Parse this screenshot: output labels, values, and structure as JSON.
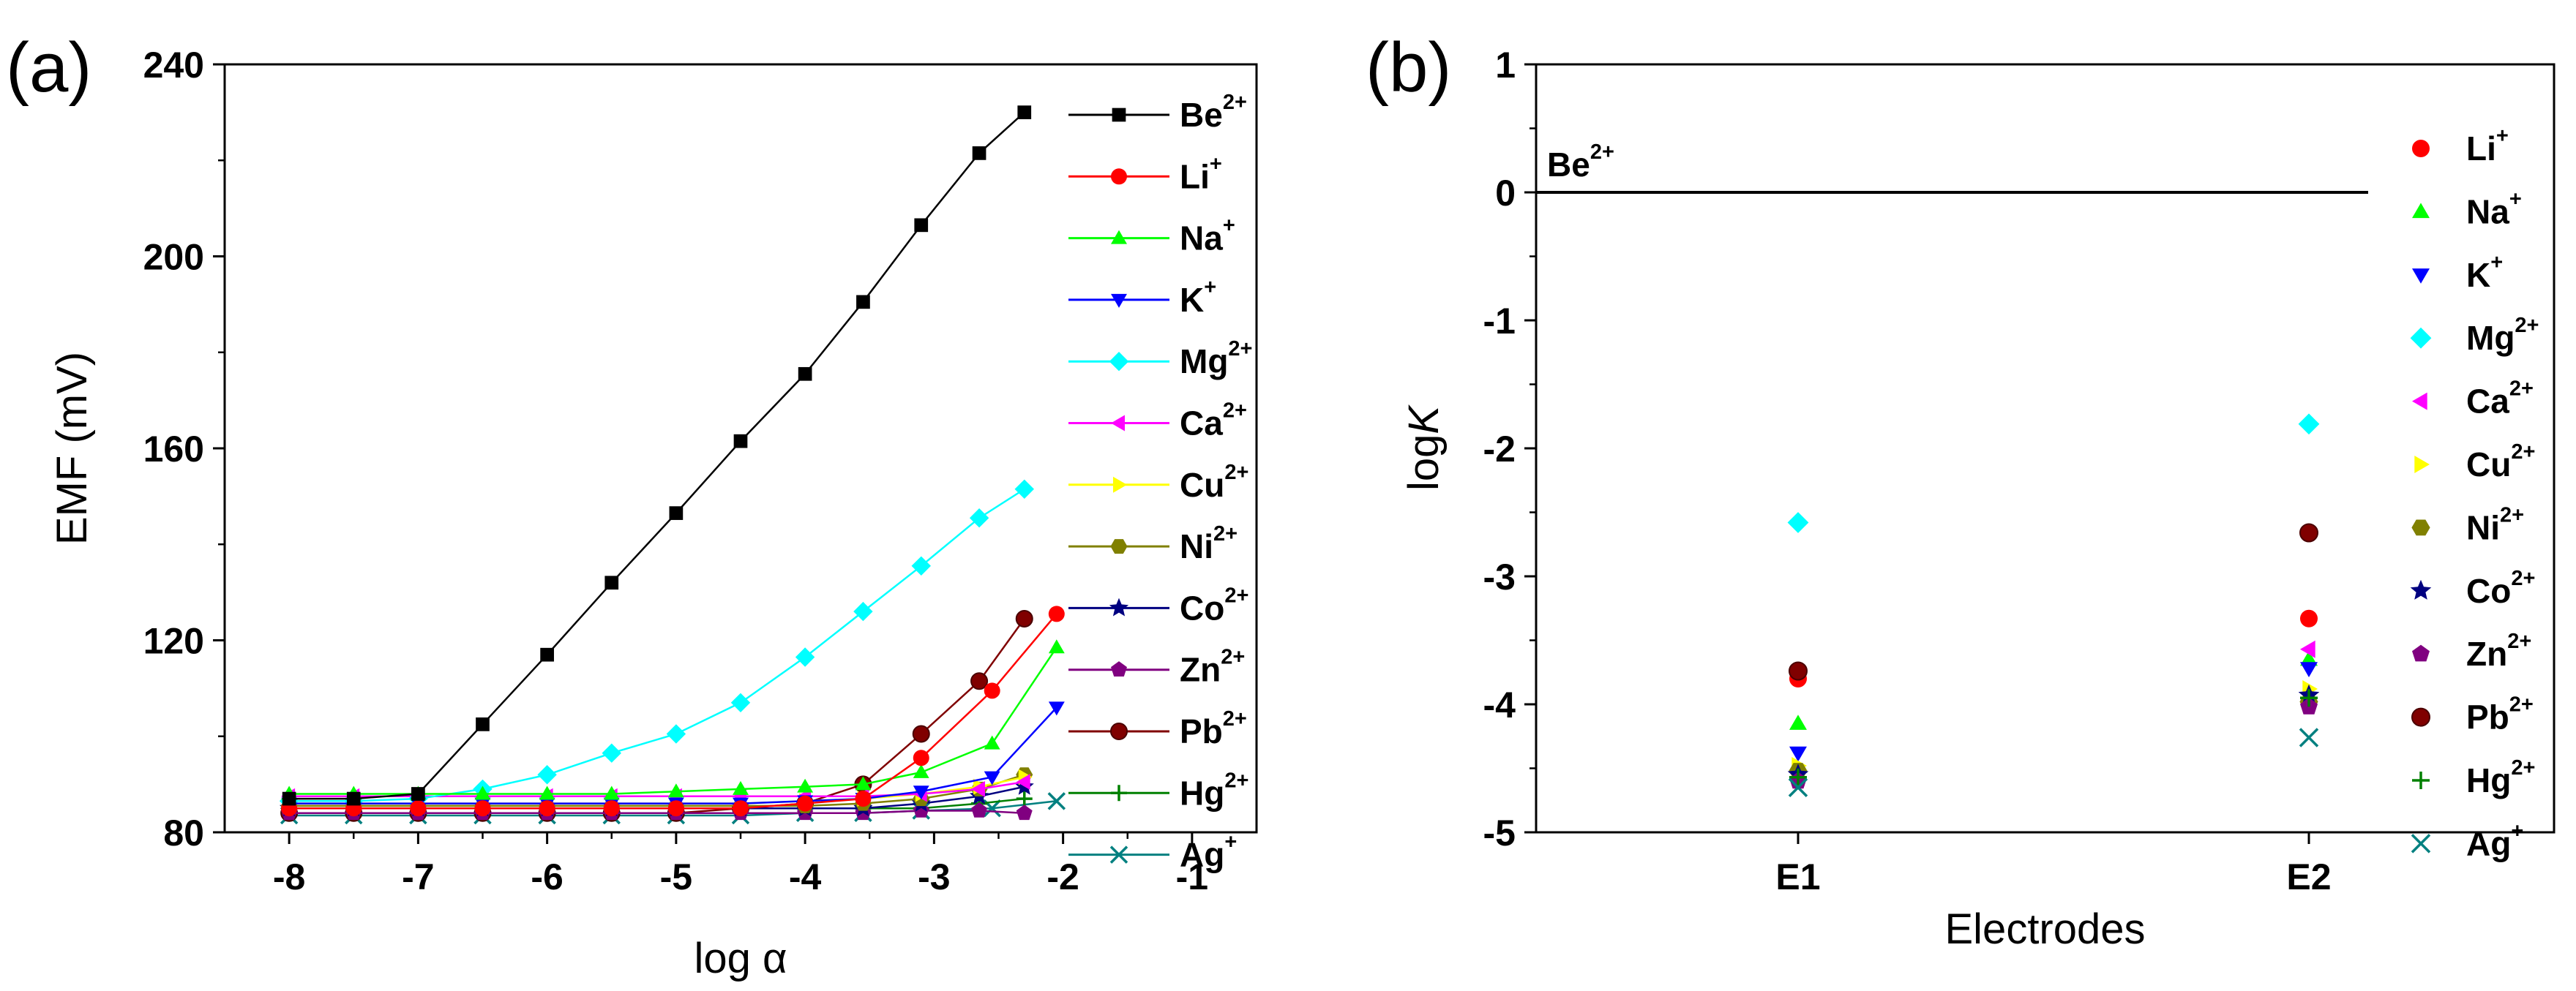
{
  "chart_data": [
    {
      "panel": "(a)",
      "type": "line",
      "xlabel": "log α",
      "ylabel": "EMF (mV)",
      "xlim": [
        -8.5,
        -0.5
      ],
      "ylim": [
        80,
        240
      ],
      "xticks": [
        -8,
        -7,
        -6,
        -5,
        -4,
        -3,
        -2,
        -1
      ],
      "xtick_labels": [
        "-8",
        "-7",
        "-6",
        "-5",
        "-4",
        "-3",
        "-2",
        "-1"
      ],
      "yticks": [
        80,
        120,
        160,
        200,
        240
      ],
      "ytick_labels": [
        "80",
        "120",
        "160",
        "200",
        "240"
      ],
      "grid": false,
      "legend_position": "right",
      "x": [
        -8,
        -7.5,
        -7,
        -6.5,
        -6,
        -5.5,
        -5,
        -4.5,
        -4,
        -3.55,
        -3.1,
        -2.65,
        -2.3
      ],
      "series": [
        {
          "name": "Be",
          "charge": "2+",
          "color": "#000000",
          "marker": "square",
          "x": [
            -8,
            -7.5,
            -7,
            -6.5,
            -6,
            -5.5,
            -5,
            -4.5,
            -4,
            -3.55,
            -3.1,
            -2.65,
            -2.3
          ],
          "values": [
            87,
            87,
            88,
            102.5,
            117,
            132,
            146.5,
            161.5,
            175.5,
            190.5,
            206.5,
            221.5,
            230
          ]
        },
        {
          "name": "Li",
          "charge": "+",
          "color": "#ff0000",
          "marker": "circle",
          "x": [
            -8,
            -7.5,
            -7,
            -6.5,
            -6,
            -5.5,
            -5,
            -4.5,
            -4,
            -3.55,
            -3.1,
            -2.55,
            -2.05
          ],
          "values": [
            85,
            85,
            85,
            85,
            85,
            85,
            85,
            85,
            86,
            87,
            95.5,
            109.5,
            125.5
          ]
        },
        {
          "name": "Na",
          "charge": "+",
          "color": "#00ff00",
          "marker": "triangle-up",
          "x": [
            -8,
            -7.5,
            -7,
            -6.5,
            -6,
            -5.5,
            -5,
            -4.5,
            -4,
            -3.55,
            -3.1,
            -2.55,
            -2.05
          ],
          "values": [
            88,
            88,
            88,
            88,
            88,
            88,
            88.5,
            89,
            89.5,
            90,
            92.5,
            98.5,
            118.5
          ]
        },
        {
          "name": "K",
          "charge": "+",
          "color": "#0000ff",
          "marker": "triangle-down",
          "x": [
            -8,
            -7.5,
            -7,
            -6.5,
            -6,
            -5.5,
            -5,
            -4.5,
            -4,
            -3.55,
            -3.1,
            -2.55,
            -2.05
          ],
          "values": [
            86,
            86,
            86,
            86,
            86,
            86,
            86,
            86,
            86.5,
            87,
            88.5,
            91.5,
            106
          ]
        },
        {
          "name": "Mg",
          "charge": "2+",
          "color": "#00ffff",
          "marker": "diamond",
          "x": [
            -8,
            -7.5,
            -7,
            -6.5,
            -6,
            -5.5,
            -5,
            -4.5,
            -4,
            -3.55,
            -3.1,
            -2.65,
            -2.3
          ],
          "values": [
            86.5,
            86.5,
            87,
            89,
            92,
            96.5,
            100.5,
            107,
            116.5,
            126,
            135.5,
            145.5,
            151.5
          ]
        },
        {
          "name": "Ca",
          "charge": "2+",
          "color": "#ff00ff",
          "marker": "triangle-left",
          "x": [
            -8,
            -7.5,
            -7,
            -6.5,
            -6,
            -5.5,
            -5,
            -4.5,
            -4,
            -3.55,
            -3.1,
            -2.65,
            -2.3
          ],
          "values": [
            87.5,
            87.5,
            87.5,
            87.5,
            87.5,
            87.5,
            87.5,
            87.5,
            87.5,
            87.5,
            88,
            89,
            90.5
          ]
        },
        {
          "name": "Cu",
          "charge": "2+",
          "color": "#ffff00",
          "marker": "triangle-right",
          "x": [
            -8,
            -7.5,
            -7,
            -6.5,
            -6,
            -5.5,
            -5,
            -4.5,
            -4,
            -3.55,
            -3.1,
            -2.65,
            -2.3
          ],
          "values": [
            86,
            86,
            86,
            86,
            86,
            86,
            86,
            86,
            86.5,
            87,
            88,
            89.5,
            91.5
          ]
        },
        {
          "name": "Ni",
          "charge": "2+",
          "color": "#808000",
          "marker": "hexagon",
          "x": [
            -8,
            -7.5,
            -7,
            -6.5,
            -6,
            -5.5,
            -5,
            -4.5,
            -4,
            -3.55,
            -3.1,
            -2.65,
            -2.3
          ],
          "values": [
            85.5,
            85.5,
            85.5,
            85.5,
            85.5,
            85.5,
            85.5,
            85.5,
            85.5,
            86,
            87,
            89,
            92
          ]
        },
        {
          "name": "Co",
          "charge": "2+",
          "color": "#000080",
          "marker": "star",
          "x": [
            -8,
            -7.5,
            -7,
            -6.5,
            -6,
            -5.5,
            -5,
            -4.5,
            -4,
            -3.55,
            -3.1,
            -2.65,
            -2.3
          ],
          "values": [
            85,
            85,
            85,
            85,
            85,
            85,
            85,
            85,
            85,
            85,
            86,
            87.5,
            89.5
          ]
        },
        {
          "name": "Zn",
          "charge": "2+",
          "color": "#800080",
          "marker": "pentagon",
          "x": [
            -8,
            -7.5,
            -7,
            -6.5,
            -6,
            -5.5,
            -5,
            -4.5,
            -4,
            -3.55,
            -3.1,
            -2.65,
            -2.3
          ],
          "values": [
            84,
            84,
            84,
            84,
            84,
            84,
            84,
            84,
            84,
            84,
            84.5,
            84.5,
            84
          ]
        },
        {
          "name": "Pb",
          "charge": "2+",
          "color": "#800000",
          "marker": "sphere",
          "x": [
            -8,
            -7.5,
            -7,
            -6.5,
            -6,
            -5.5,
            -5,
            -4.5,
            -4,
            -3.55,
            -3.1,
            -2.65,
            -2.3
          ],
          "values": [
            84,
            84,
            84,
            84,
            84,
            84,
            84,
            85,
            86,
            90,
            100.5,
            111.5,
            124.5
          ]
        },
        {
          "name": "Hg",
          "charge": "2+",
          "color": "#008000",
          "marker": "plus",
          "x": [
            -8,
            -7.5,
            -7,
            -6.5,
            -6,
            -5.5,
            -5,
            -4.5,
            -4,
            -3.55,
            -3.1,
            -2.65,
            -2.3
          ],
          "values": [
            85,
            85,
            85,
            85,
            85,
            85,
            85,
            85,
            85,
            85,
            85,
            86,
            87
          ]
        },
        {
          "name": "Ag",
          "charge": "+",
          "color": "#008080",
          "marker": "x",
          "x": [
            -8,
            -7.5,
            -7,
            -6.5,
            -6,
            -5.5,
            -5,
            -4.5,
            -4,
            -3.55,
            -3.1,
            -2.55,
            -2.05
          ],
          "values": [
            83.5,
            83.5,
            83.5,
            83.5,
            83.5,
            83.5,
            83.5,
            83.5,
            84,
            84,
            84.5,
            85,
            86.5
          ]
        }
      ]
    },
    {
      "panel": "(b)",
      "type": "scatter",
      "xlabel": "Electrodes",
      "ylabel_prefix": "log",
      "ylabel_italic": "K",
      "categories": [
        "E1",
        "E2"
      ],
      "ylim": [
        -5,
        1
      ],
      "yticks": [
        -5,
        -4,
        -3,
        -2,
        -1,
        0,
        1
      ],
      "ytick_labels": [
        "-5",
        "-4",
        "-3",
        "-2",
        "-1",
        "0",
        "1"
      ],
      "grid": false,
      "legend_position": "top-right",
      "reference_line": {
        "y": 0,
        "label": "Be",
        "charge": "2+"
      },
      "series": [
        {
          "name": "Li",
          "charge": "+",
          "color": "#ff0000",
          "marker": "circle",
          "values": [
            -3.8,
            -3.33
          ]
        },
        {
          "name": "Na",
          "charge": "+",
          "color": "#00ff00",
          "marker": "triangle-up",
          "values": [
            -4.15,
            -3.65
          ]
        },
        {
          "name": "K",
          "charge": "+",
          "color": "#0000ff",
          "marker": "triangle-down",
          "values": [
            -4.38,
            -3.72
          ]
        },
        {
          "name": "Mg",
          "charge": "2+",
          "color": "#00ffff",
          "marker": "diamond",
          "values": [
            -2.58,
            -1.81
          ]
        },
        {
          "name": "Ca",
          "charge": "2+",
          "color": "#ff00ff",
          "marker": "triangle-left",
          "values": [
            -4.57,
            -3.57
          ]
        },
        {
          "name": "Cu",
          "charge": "2+",
          "color": "#ffff00",
          "marker": "triangle-right",
          "values": [
            -4.48,
            -3.88
          ]
        },
        {
          "name": "Ni",
          "charge": "2+",
          "color": "#808000",
          "marker": "hexagon",
          "values": [
            -4.52,
            -3.98
          ]
        },
        {
          "name": "Co",
          "charge": "2+",
          "color": "#000080",
          "marker": "star",
          "values": [
            -4.55,
            -3.93
          ]
        },
        {
          "name": "Zn",
          "charge": "2+",
          "color": "#800080",
          "marker": "pentagon",
          "values": [
            -4.6,
            -4.02
          ]
        },
        {
          "name": "Pb",
          "charge": "2+",
          "color": "#800000",
          "marker": "sphere",
          "values": [
            -3.74,
            -2.66
          ]
        },
        {
          "name": "Hg",
          "charge": "2+",
          "color": "#008000",
          "marker": "plus",
          "values": [
            -4.57,
            -3.95
          ]
        },
        {
          "name": "Ag",
          "charge": "+",
          "color": "#008080",
          "marker": "x",
          "values": [
            -4.65,
            -4.26
          ]
        }
      ]
    }
  ]
}
